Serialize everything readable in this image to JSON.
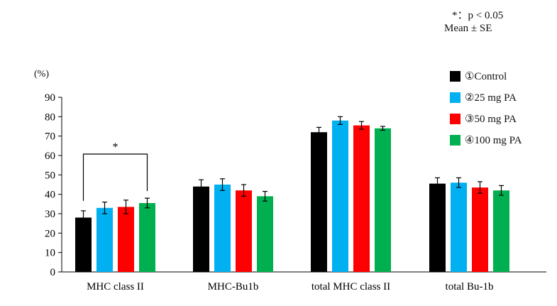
{
  "notes": {
    "significance": "*：p < 0.05",
    "stat": "Mean ± SE"
  },
  "chart_data": {
    "type": "bar",
    "title": "",
    "ylabel": "(%)",
    "xlabel": "",
    "ylim": [
      0,
      90
    ],
    "yticks": [
      0,
      10,
      20,
      30,
      40,
      50,
      60,
      70,
      80,
      90
    ],
    "grid": false,
    "legend_position": "top-right",
    "categories": [
      "MHC class II",
      "MHC-Bu1b",
      "total MHC class II",
      "total Bu-1b"
    ],
    "series": [
      {
        "name": "①Control",
        "color": "#000000",
        "values": [
          28,
          44,
          72,
          45.5
        ],
        "errors": [
          3.5,
          3.5,
          2.5,
          3.0
        ]
      },
      {
        "name": "②25 mg PA",
        "color": "#00B0F0",
        "values": [
          33,
          45,
          78,
          46
        ],
        "errors": [
          3.0,
          3.0,
          2.0,
          2.5
        ]
      },
      {
        "name": "③50 mg PA",
        "color": "#FF0000",
        "values": [
          33.5,
          42,
          75.5,
          43.5
        ],
        "errors": [
          3.5,
          3.0,
          2.0,
          3.0
        ]
      },
      {
        "name": "④100 mg PA",
        "color": "#00B050",
        "values": [
          35.5,
          39,
          74,
          42
        ],
        "errors": [
          2.5,
          2.5,
          1.0,
          2.5
        ]
      }
    ],
    "annotations": [
      {
        "text": "*",
        "category": "MHC class II",
        "from_series": 0,
        "to_series": 3
      }
    ]
  }
}
